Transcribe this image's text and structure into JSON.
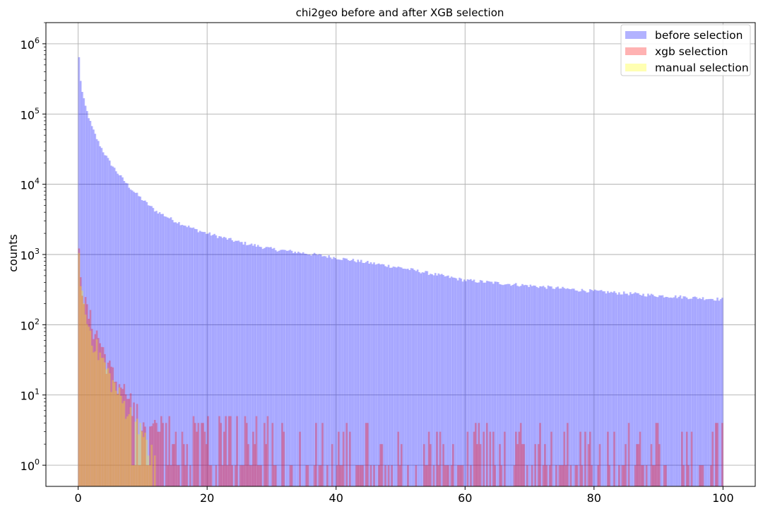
{
  "chart_data": {
    "type": "histogram",
    "title": "chi2geo before and after XGB selection",
    "xlabel": "",
    "ylabel": "counts",
    "xlim": [
      -5,
      105
    ],
    "ylim": [
      0.5,
      2000000
    ],
    "yscale": "log",
    "grid": true,
    "legend_position": "top-right",
    "x_ticks": [
      0,
      20,
      40,
      60,
      80,
      100
    ],
    "x_tick_labels": [
      "0",
      "20",
      "40",
      "60",
      "80",
      "100"
    ],
    "y_ticks": [
      1,
      10,
      100,
      1000,
      10000,
      100000,
      1000000
    ],
    "y_tick_labels": [
      {
        "base": "10",
        "exp": "0"
      },
      {
        "base": "10",
        "exp": "1"
      },
      {
        "base": "10",
        "exp": "2"
      },
      {
        "base": "10",
        "exp": "3"
      },
      {
        "base": "10",
        "exp": "4"
      },
      {
        "base": "10",
        "exp": "5"
      },
      {
        "base": "10",
        "exp": "6"
      }
    ],
    "bins": {
      "start": 0,
      "end": 100,
      "count": 400
    },
    "series": [
      {
        "name": "before selection",
        "color": "#0000ff",
        "alpha": 0.3,
        "description": "steeply falling from ~1e6 at 0 to ~1e3 near 30 and ~230 at 100",
        "anchor_x": [
          0,
          0.25,
          0.5,
          1,
          2,
          3,
          4,
          5,
          6,
          8,
          10,
          12,
          15,
          18,
          20,
          25,
          30,
          35,
          40,
          50,
          60,
          70,
          80,
          90,
          100
        ],
        "anchor_y": [
          1000000,
          400000,
          230000,
          140000,
          70000,
          42000,
          28000,
          20000,
          15000,
          9000,
          6000,
          4200,
          3000,
          2300,
          2000,
          1500,
          1200,
          1050,
          900,
          650,
          430,
          360,
          300,
          260,
          230
        ]
      },
      {
        "name": "xgb selection",
        "color": "#ff0000",
        "alpha": 0.3,
        "description": "peaks ~1200 at 0, falls to ~1-10 by 12, sparse single counts up to 100",
        "anchor_x": [
          0,
          0.25,
          0.5,
          1,
          2,
          3,
          4,
          5,
          6,
          7,
          8,
          9,
          10,
          11,
          12,
          14,
          16,
          18,
          20,
          25,
          30
        ],
        "anchor_y": [
          1200,
          800,
          500,
          200,
          110,
          70,
          40,
          22,
          15,
          12,
          8,
          6,
          5,
          4,
          3.2,
          2.8,
          2.4,
          2.1,
          1.9,
          1.6,
          1.4
        ]
      },
      {
        "name": "manual selection",
        "color": "#ffff00",
        "alpha": 0.3,
        "description": "concentrated at low chi2geo, ~1000 at 0 to ~1 at 12, none beyond 12",
        "anchor_x": [
          0,
          0.25,
          0.5,
          1,
          2,
          3,
          4,
          5,
          6,
          7,
          8,
          9,
          10,
          11,
          11.75
        ],
        "anchor_y": [
          1000,
          700,
          400,
          150,
          80,
          45,
          30,
          18,
          12,
          8,
          6,
          4,
          3,
          2,
          1.2
        ],
        "cutoff": 12
      }
    ]
  }
}
